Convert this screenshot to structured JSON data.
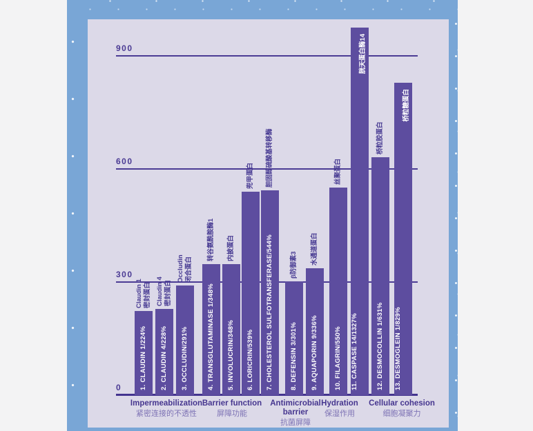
{
  "frame": {
    "blue_background": "#79a6d6",
    "panel_background": "#dcd9e8",
    "dot_color": "#ffffff"
  },
  "chart_data": {
    "type": "bar",
    "title": "",
    "y_ticks": [
      900,
      600,
      300,
      0
    ],
    "ylim": [
      0,
      900
    ],
    "grid": true,
    "bar_color": "#5d4d9f",
    "axis_color": "#4b3b94",
    "bars": [
      {
        "order": 1,
        "label": "1. CLAUDIN 1/224%",
        "value": 224,
        "cn": "密封蛋白",
        "latin": "Claudin 1",
        "cn_inside": false,
        "category": "Impermeabilization"
      },
      {
        "order": 2,
        "label": "2. CLAUDIN 4/228%",
        "value": 228,
        "cn": "密封蛋白",
        "latin": "Claudin 4",
        "cn_inside": false,
        "category": "Impermeabilization"
      },
      {
        "order": 3,
        "label": "3. OCCLUDIN/291%",
        "value": 291,
        "cn": "闭合蛋白",
        "latin": "Occludin",
        "cn_inside": false,
        "category": "Impermeabilization"
      },
      {
        "order": 4,
        "label": "4. TRANSGLUTAMINASE 1/348%",
        "value": 348,
        "cn": "转谷氨酰胺酶1",
        "latin": "",
        "cn_inside": false,
        "category": "Barrier function"
      },
      {
        "order": 5,
        "label": "5. INVOLUCRIN/348%",
        "value": 348,
        "cn": "内披蛋白",
        "latin": "",
        "cn_inside": false,
        "category": "Barrier function"
      },
      {
        "order": 6,
        "label": "6. LORICRIN/539%",
        "value": 539,
        "cn": "兜甲蛋白",
        "latin": "",
        "cn_inside": false,
        "category": "Barrier function"
      },
      {
        "order": 7,
        "label": "7. CHOLESTEROL SULFOTRANSFERASE/544%",
        "value": 544,
        "cn": "胆固醇硫酸基转移酶",
        "latin": "",
        "cn_inside": false,
        "category": "Barrier function"
      },
      {
        "order": 8,
        "label": "8. DEFENSIN 3/301%",
        "value": 301,
        "cn": "β防御素3",
        "latin": "",
        "cn_inside": false,
        "category": "Antimicrobial barrier"
      },
      {
        "order": 9,
        "label": "9. AQUAPORIN 9/336%",
        "value": 336,
        "cn": "水通道蛋白",
        "latin": "",
        "cn_inside": false,
        "category": "Hydration"
      },
      {
        "order": 10,
        "label": "10. FILAGRIN/550%",
        "value": 550,
        "cn": "丝聚蛋白",
        "latin": "",
        "cn_inside": false,
        "category": "Hydration"
      },
      {
        "order": 11,
        "label": "11. CASPASE 14/1327%",
        "value": 1327,
        "cn": "胱天蛋白酶14",
        "latin": "",
        "cn_inside": true,
        "category": "Cellular cohesion"
      },
      {
        "order": 12,
        "label": "12. DESMOCOLLIN 1/631%",
        "value": 631,
        "cn": "桥粒胶蛋白",
        "latin": "",
        "cn_inside": false,
        "category": "Cellular cohesion"
      },
      {
        "order": 13,
        "label": "13. DESMOGLEIN 1/829%",
        "value": 829,
        "cn": "桥粒糖蛋白",
        "latin": "",
        "cn_inside": true,
        "category": "Cellular cohesion"
      }
    ],
    "categories": [
      {
        "en": [
          "Impermeabilization"
        ],
        "cn": "紧密连接的不透性"
      },
      {
        "en": [
          "Barrier function"
        ],
        "cn": "屏障功能"
      },
      {
        "en": [
          "Antimicrobial",
          "barrier"
        ],
        "cn": "抗菌屏障"
      },
      {
        "en": [
          "Hydration"
        ],
        "cn": "保湿作用"
      },
      {
        "en": [
          "Cellular cohesion"
        ],
        "cn": "细胞凝聚力"
      }
    ],
    "legend_position": "none"
  }
}
